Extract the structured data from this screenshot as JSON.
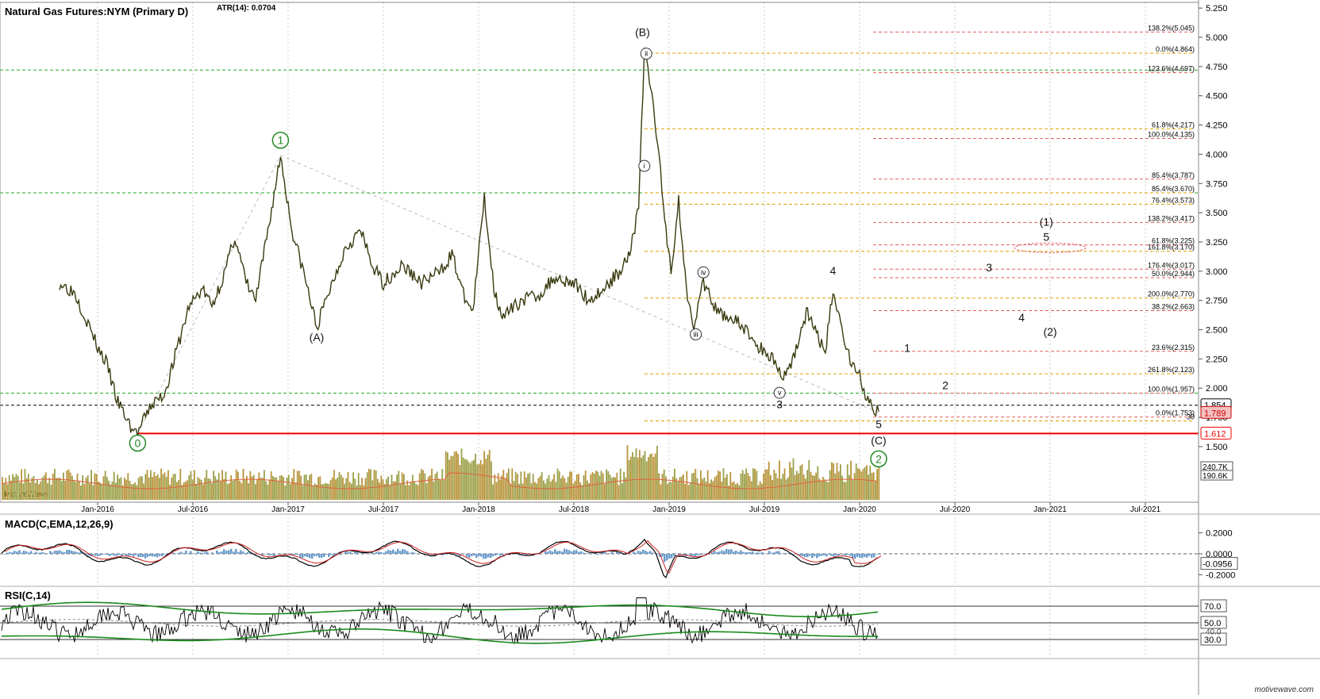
{
  "chart_data": [
    {
      "type": "line",
      "title": "Natural Gas Futures:NYM (Primary D)",
      "indicator": "ATR(14): 0.0704",
      "watermark": "MotiveWave",
      "footer_brand": "motivewave.com",
      "x_ticks": [
        "Jan-2016",
        "Jul-2016",
        "Jan-2017",
        "Jul-2017",
        "Jan-2018",
        "Jul-2018",
        "Jan-2019",
        "Jul-2019",
        "Jan-2020",
        "Jul-2020",
        "Jan-2021",
        "Jul-2021"
      ],
      "y_ticks": [
        "5.250",
        "5.000",
        "4.750",
        "4.500",
        "4.250",
        "4.000",
        "3.750",
        "3.500",
        "3.250",
        "3.000",
        "2.750",
        "2.500",
        "2.250",
        "2.000",
        "1.750",
        "1.500"
      ],
      "ylim": [
        1.4,
        5.3
      ],
      "price_points": [
        {
          "t": 2015.8,
          "v": 2.9
        },
        {
          "t": 2015.88,
          "v": 2.82
        },
        {
          "t": 2015.95,
          "v": 2.55
        },
        {
          "t": 2016.0,
          "v": 2.35
        },
        {
          "t": 2016.05,
          "v": 2.2
        },
        {
          "t": 2016.1,
          "v": 1.9
        },
        {
          "t": 2016.18,
          "v": 1.65
        },
        {
          "t": 2016.21,
          "v": 1.612
        },
        {
          "t": 2016.28,
          "v": 1.85
        },
        {
          "t": 2016.35,
          "v": 1.95
        },
        {
          "t": 2016.42,
          "v": 2.35
        },
        {
          "t": 2016.48,
          "v": 2.7
        },
        {
          "t": 2016.55,
          "v": 2.85
        },
        {
          "t": 2016.6,
          "v": 2.7
        },
        {
          "t": 2016.67,
          "v": 3.0
        },
        {
          "t": 2016.72,
          "v": 3.3
        },
        {
          "t": 2016.78,
          "v": 2.9
        },
        {
          "t": 2016.83,
          "v": 2.75
        },
        {
          "t": 2016.9,
          "v": 3.4
        },
        {
          "t": 2016.96,
          "v": 3.99
        },
        {
          "t": 2017.02,
          "v": 3.35
        },
        {
          "t": 2017.08,
          "v": 3.0
        },
        {
          "t": 2017.15,
          "v": 2.52
        },
        {
          "t": 2017.22,
          "v": 2.85
        },
        {
          "t": 2017.3,
          "v": 3.2
        },
        {
          "t": 2017.38,
          "v": 3.35
        },
        {
          "t": 2017.44,
          "v": 3.05
        },
        {
          "t": 2017.5,
          "v": 2.9
        },
        {
          "t": 2017.6,
          "v": 3.05
        },
        {
          "t": 2017.7,
          "v": 2.9
        },
        {
          "t": 2017.8,
          "v": 3.0
        },
        {
          "t": 2017.86,
          "v": 3.15
        },
        {
          "t": 2017.92,
          "v": 2.8
        },
        {
          "t": 2017.97,
          "v": 2.65
        },
        {
          "t": 2018.03,
          "v": 3.64
        },
        {
          "t": 2018.08,
          "v": 2.85
        },
        {
          "t": 2018.13,
          "v": 2.6
        },
        {
          "t": 2018.22,
          "v": 2.75
        },
        {
          "t": 2018.32,
          "v": 2.8
        },
        {
          "t": 2018.4,
          "v": 2.95
        },
        {
          "t": 2018.5,
          "v": 2.9
        },
        {
          "t": 2018.58,
          "v": 2.75
        },
        {
          "t": 2018.66,
          "v": 2.85
        },
        {
          "t": 2018.74,
          "v": 3.0
        },
        {
          "t": 2018.8,
          "v": 3.2
        },
        {
          "t": 2018.84,
          "v": 3.55
        },
        {
          "t": 2018.87,
          "v": 4.9
        },
        {
          "t": 2018.91,
          "v": 4.5
        },
        {
          "t": 2018.94,
          "v": 4.1
        },
        {
          "t": 2018.97,
          "v": 3.55
        },
        {
          "t": 2019.01,
          "v": 3.0
        },
        {
          "t": 2019.05,
          "v": 3.6
        },
        {
          "t": 2019.09,
          "v": 2.85
        },
        {
          "t": 2019.13,
          "v": 2.55
        },
        {
          "t": 2019.18,
          "v": 2.9
        },
        {
          "t": 2019.25,
          "v": 2.65
        },
        {
          "t": 2019.33,
          "v": 2.6
        },
        {
          "t": 2019.4,
          "v": 2.5
        },
        {
          "t": 2019.47,
          "v": 2.35
        },
        {
          "t": 2019.55,
          "v": 2.25
        },
        {
          "t": 2019.6,
          "v": 2.08
        },
        {
          "t": 2019.66,
          "v": 2.3
        },
        {
          "t": 2019.72,
          "v": 2.65
        },
        {
          "t": 2019.78,
          "v": 2.45
        },
        {
          "t": 2019.82,
          "v": 2.3
        },
        {
          "t": 2019.86,
          "v": 2.85
        },
        {
          "t": 2019.9,
          "v": 2.55
        },
        {
          "t": 2019.95,
          "v": 2.25
        },
        {
          "t": 2020.0,
          "v": 2.1
        },
        {
          "t": 2020.03,
          "v": 1.95
        },
        {
          "t": 2020.07,
          "v": 1.8
        },
        {
          "t": 2020.1,
          "v": 1.8
        }
      ],
      "h_lines": [
        {
          "v": 4.72,
          "color": "#22aa22",
          "style": "dashed",
          "label": ""
        },
        {
          "v": 3.67,
          "color": "#22aa22",
          "style": "dashed",
          "label": ""
        },
        {
          "v": 1.957,
          "color": "#22aa22",
          "style": "dashed",
          "label": ""
        },
        {
          "v": 1.854,
          "color": "#000000",
          "style": "dashed",
          "label": ""
        },
        {
          "v": 1.612,
          "color": "#ee0000",
          "style": "solid",
          "label": ""
        }
      ],
      "fib_levels": [
        {
          "v": 5.045,
          "text": "138.2%(5.045)",
          "color": "#e06060"
        },
        {
          "v": 4.864,
          "text": "0.0%(4.864)",
          "color": "#e0a000"
        },
        {
          "v": 4.697,
          "text": "123.6%(4.697)",
          "color": "#e06060"
        },
        {
          "v": 4.217,
          "text": "61.8%(4.217)",
          "color": "#e0a000"
        },
        {
          "v": 4.135,
          "text": "100.0%(4.135)",
          "color": "#e06060"
        },
        {
          "v": 3.787,
          "text": "85.4%(3.787)",
          "color": "#e06060"
        },
        {
          "v": 3.67,
          "text": "85.4%(3.670)",
          "color": "#e0a000"
        },
        {
          "v": 3.573,
          "text": "76.4%(3.573)",
          "color": "#e0a000"
        },
        {
          "v": 3.417,
          "text": "138.2%(3.417)",
          "color": "#e06060"
        },
        {
          "v": 3.225,
          "text": "61.8%(3.225)",
          "color": "#e06060"
        },
        {
          "v": 3.17,
          "text": "161.8%(3.170)",
          "color": "#e0a000"
        },
        {
          "v": 3.017,
          "text": "176.4%(3.017)",
          "color": "#e06060"
        },
        {
          "v": 2.944,
          "text": "50.0%(2.944)",
          "color": "#e06060"
        },
        {
          "v": 2.77,
          "text": "200.0%(2.770)",
          "color": "#e0a000"
        },
        {
          "v": 2.663,
          "text": "38.2%(2.663)",
          "color": "#e06060"
        },
        {
          "v": 2.315,
          "text": "23.6%(2.315)",
          "color": "#e06060"
        },
        {
          "v": 2.123,
          "text": "261.8%(2.123)",
          "color": "#e0a000"
        },
        {
          "v": 1.957,
          "text": "100.0%(1.957)",
          "color": "#e06060"
        },
        {
          "v": 1.753,
          "text": "0.0%(1.753)",
          "color": "#e06060"
        },
        {
          "v": 1.72,
          "text": "30",
          "color": "#e0a000"
        }
      ],
      "price_tags": [
        {
          "v": 1.854,
          "text": "1.854",
          "color": "#000000",
          "bg": "#ffffff"
        },
        {
          "v": 1.789,
          "text": "1.789",
          "color": "#cc0000",
          "bg": "#f4c0c0"
        },
        {
          "v": 1.612,
          "text": "1.612",
          "color": "#ee0000",
          "bg": "#ffffff"
        }
      ],
      "volume_tags": [
        "240.7K",
        "190.6K"
      ],
      "wave_labels": [
        {
          "t": 2016.21,
          "v": 1.53,
          "text": "0",
          "circle": "#228822"
        },
        {
          "t": 2016.96,
          "v": 4.12,
          "text": "1",
          "circle": "#228822"
        },
        {
          "t": 2020.1,
          "v": 1.395,
          "text": "2",
          "circle": "#228822"
        },
        {
          "t": 2017.15,
          "v": 2.4,
          "text": "(A)"
        },
        {
          "t": 2018.86,
          "v": 5.01,
          "text": "(B)"
        },
        {
          "t": 2020.1,
          "v": 1.52,
          "text": "(C)"
        },
        {
          "t": 2018.88,
          "v": 4.86,
          "text": "ii",
          "small_circle": true
        },
        {
          "t": 2018.87,
          "v": 3.9,
          "text": "i",
          "small_circle": true
        },
        {
          "t": 2019.18,
          "v": 2.99,
          "text": "iv",
          "small_circle": true
        },
        {
          "t": 2019.14,
          "v": 2.46,
          "text": "iii",
          "small_circle": true
        },
        {
          "t": 2019.58,
          "v": 1.96,
          "text": "v",
          "small_circle": true
        },
        {
          "t": 2019.58,
          "v": 1.83,
          "text": "3"
        },
        {
          "t": 2019.86,
          "v": 2.97,
          "text": "4"
        },
        {
          "t": 2020.1,
          "v": 1.66,
          "text": "5"
        },
        {
          "t": 2020.25,
          "v": 2.31,
          "text": "1"
        },
        {
          "t": 2020.45,
          "v": 1.99,
          "text": "2"
        },
        {
          "t": 2020.68,
          "v": 3.0,
          "text": "3"
        },
        {
          "t": 2020.85,
          "v": 2.57,
          "text": "4"
        },
        {
          "t": 2020.98,
          "v": 3.26,
          "text": "5"
        },
        {
          "t": 2020.98,
          "v": 3.39,
          "text": "(1)"
        },
        {
          "t": 2021.0,
          "v": 2.45,
          "text": "(2)"
        }
      ]
    },
    {
      "type": "line",
      "title": "MACD(C,EMA,12,26,9)",
      "y_ticks": [
        "0.2000",
        "0.0000",
        "-0.2000"
      ],
      "ylim": [
        -0.28,
        0.3
      ],
      "current_value": "-0.0956"
    },
    {
      "type": "line",
      "title": "RSI(C,14)",
      "y_ticks": [
        "70.0",
        "50.0",
        "30.0"
      ],
      "tag_value": "40.0",
      "ylim": [
        20,
        85
      ]
    }
  ]
}
